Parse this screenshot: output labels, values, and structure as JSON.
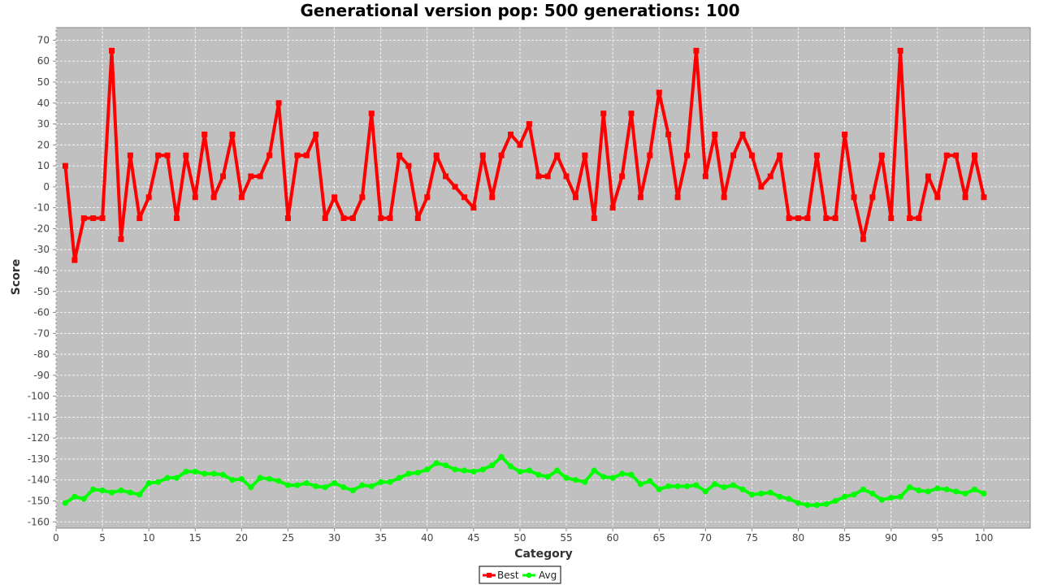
{
  "chart_data": {
    "type": "line",
    "title": "Generational version pop: 500 generations: 100",
    "xlabel": "Category",
    "ylabel": "Score",
    "xlim": [
      0,
      105
    ],
    "ylim": [
      -163,
      76
    ],
    "x_ticks": [
      0,
      5,
      10,
      15,
      20,
      25,
      30,
      35,
      40,
      45,
      50,
      55,
      60,
      65,
      70,
      75,
      80,
      85,
      90,
      95,
      100
    ],
    "y_ticks": [
      70,
      60,
      50,
      40,
      30,
      20,
      10,
      0,
      -10,
      -20,
      -30,
      -40,
      -50,
      -60,
      -70,
      -80,
      -90,
      -100,
      -110,
      -120,
      -130,
      -140,
      -150,
      -160
    ],
    "grid": true,
    "plot_background": "#c0c0c0",
    "legend_position": "bottom",
    "x": [
      1,
      2,
      3,
      4,
      5,
      6,
      7,
      8,
      9,
      10,
      11,
      12,
      13,
      14,
      15,
      16,
      17,
      18,
      19,
      20,
      21,
      22,
      23,
      24,
      25,
      26,
      27,
      28,
      29,
      30,
      31,
      32,
      33,
      34,
      35,
      36,
      37,
      38,
      39,
      40,
      41,
      42,
      43,
      44,
      45,
      46,
      47,
      48,
      49,
      50,
      51,
      52,
      53,
      54,
      55,
      56,
      57,
      58,
      59,
      60,
      61,
      62,
      63,
      64,
      65,
      66,
      67,
      68,
      69,
      70,
      71,
      72,
      73,
      74,
      75,
      76,
      77,
      78,
      79,
      80,
      81,
      82,
      83,
      84,
      85,
      86,
      87,
      88,
      89,
      90,
      91,
      92,
      93,
      94,
      95,
      96,
      97,
      98,
      99,
      100
    ],
    "series": [
      {
        "name": "Best",
        "color": "#ff0000",
        "marker": "square",
        "values": [
          10,
          -35,
          -15,
          -15,
          -15,
          65,
          -25,
          15,
          -15,
          -5,
          15,
          15,
          -15,
          15,
          -5,
          25,
          -5,
          5,
          25,
          -5,
          5,
          5,
          15,
          40,
          -15,
          15,
          15,
          25,
          -15,
          -5,
          -15,
          -15,
          -5,
          35,
          -15,
          -15,
          15,
          10,
          -15,
          -5,
          15,
          5,
          0,
          -5,
          -10,
          15,
          -5,
          15,
          25,
          20,
          30,
          5,
          5,
          15,
          5,
          -5,
          15,
          -15,
          35,
          -10,
          5,
          35,
          -5,
          15,
          45,
          25,
          -5,
          15,
          65,
          5,
          25,
          -5,
          15,
          25,
          15,
          0,
          5,
          15,
          -15,
          -15,
          -15,
          15,
          -15,
          -15,
          25,
          -5,
          -25,
          -5,
          15,
          -15,
          65,
          -15,
          -15,
          5,
          -5,
          15,
          15,
          -5,
          15,
          -5
        ]
      },
      {
        "name": "Avg",
        "color": "#00ff00",
        "marker": "circle",
        "values": [
          -151,
          -148,
          -149,
          -144.5,
          -145,
          -146,
          -145,
          -146,
          -147,
          -141.5,
          -141,
          -139,
          -139,
          -136,
          -136,
          -137,
          -137,
          -137.5,
          -140,
          -139.5,
          -143.5,
          -139,
          -139.5,
          -140.5,
          -142.5,
          -142.5,
          -141.5,
          -143,
          -143.5,
          -141.5,
          -143.5,
          -145,
          -142.5,
          -143,
          -141,
          -141,
          -139,
          -137,
          -136.5,
          -135,
          -132,
          -133,
          -135,
          -135.5,
          -136,
          -135,
          -133,
          -129,
          -133.5,
          -136,
          -135.5,
          -137.5,
          -138.5,
          -135.5,
          -139,
          -140,
          -141,
          -135.5,
          -138.5,
          -139,
          -137,
          -137.5,
          -142,
          -140.5,
          -144.5,
          -143,
          -143,
          -143,
          -142.5,
          -145.5,
          -142,
          -143.5,
          -142.5,
          -144.5,
          -147,
          -146.5,
          -146,
          -148,
          -149,
          -151,
          -152,
          -152,
          -151.5,
          -150,
          -148,
          -147,
          -144.5,
          -146.5,
          -149.5,
          -148.5,
          -148,
          -143.5,
          -145,
          -145.5,
          -144,
          -144.5,
          -145.5,
          -146.5,
          -144.5,
          -146.5
        ]
      }
    ]
  }
}
